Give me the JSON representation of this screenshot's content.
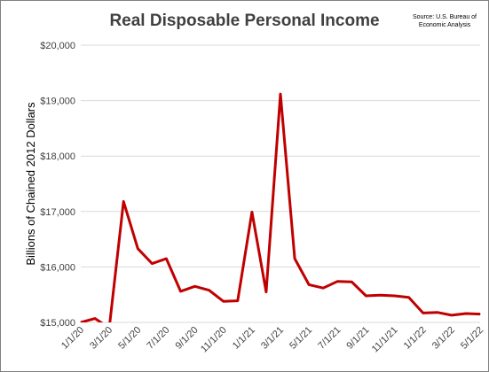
{
  "chart_data": {
    "type": "line",
    "title": "Real Disposable Personal Income",
    "source": "Source: U.S. Bureau of Economic Analysis",
    "source_lines": [
      "Source: U.S. Bureau of",
      "Economic Analysis"
    ],
    "ylabel": "Billions of Chained 2012 Dollars",
    "xlabel": "",
    "ylim": [
      15000,
      20000
    ],
    "yticks": [
      15000,
      16000,
      17000,
      18000,
      19000,
      20000
    ],
    "ytick_labels": [
      "$15,000",
      "$16,000",
      "$17,000",
      "$18,000",
      "$19,000",
      "$20,000"
    ],
    "x": [
      "1/1/20",
      "2/1/20",
      "3/1/20",
      "4/1/20",
      "5/1/20",
      "6/1/20",
      "7/1/20",
      "8/1/20",
      "9/1/20",
      "10/1/20",
      "11/1/20",
      "12/1/20",
      "1/1/21",
      "2/1/21",
      "3/1/21",
      "4/1/21",
      "5/1/21",
      "6/1/21",
      "7/1/21",
      "8/1/21",
      "9/1/21",
      "10/1/21",
      "11/1/21",
      "12/1/21",
      "1/1/22",
      "2/1/22",
      "3/1/22",
      "4/1/22",
      "5/1/22"
    ],
    "xtick_labels": [
      "1/1/20",
      "3/1/20",
      "5/1/20",
      "7/1/20",
      "9/1/20",
      "11/1/20",
      "1/1/21",
      "3/1/21",
      "5/1/21",
      "7/1/21",
      "9/1/21",
      "11/1/21",
      "1/1/22",
      "3/1/22",
      "5/1/22"
    ],
    "values": [
      15000,
      15070,
      14900,
      17180,
      16330,
      16060,
      16150,
      15560,
      15650,
      15580,
      15380,
      15390,
      16990,
      15550,
      19120,
      16150,
      15680,
      15620,
      15740,
      15730,
      15480,
      15490,
      15480,
      15450,
      15170,
      15180,
      15130,
      15160,
      15150
    ],
    "line_color": "#c00000",
    "grid": true
  }
}
